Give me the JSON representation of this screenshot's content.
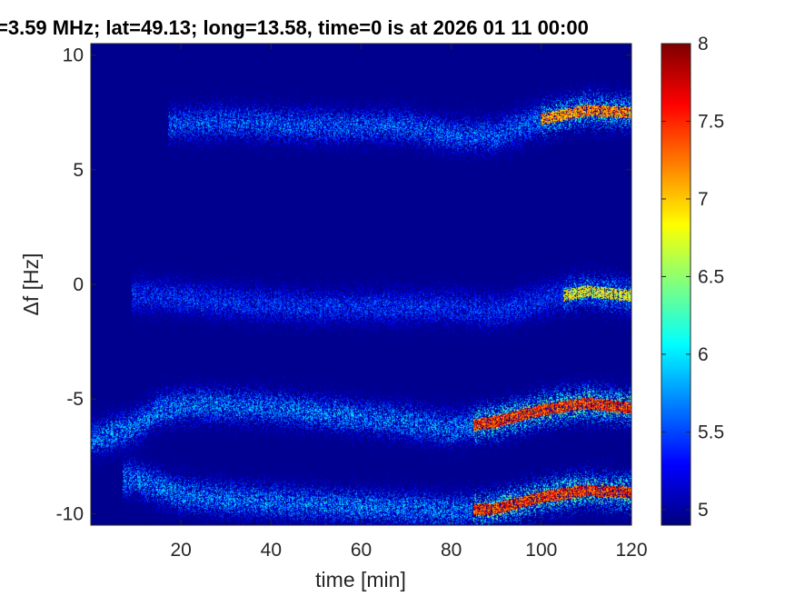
{
  "chart_data": {
    "type": "heatmap",
    "title": "=3.59 MHz;  lat=49.13; long=13.58, time=0 is at 2026 01 11 00:00",
    "xlabel": "time [min]",
    "ylabel": "Δf [Hz]",
    "xlim": [
      0,
      120
    ],
    "ylim": [
      -10.5,
      10.5
    ],
    "x_ticks": [
      20,
      40,
      60,
      80,
      100,
      120
    ],
    "x_tick_labels": [
      "20",
      "40",
      "60",
      "80",
      "100",
      "120"
    ],
    "y_ticks": [
      10,
      5,
      0,
      -5,
      -10
    ],
    "y_tick_labels": [
      "10",
      "5",
      "0",
      "-5",
      "-10"
    ],
    "colorbar": {
      "colormap": "jet",
      "range": [
        4.9,
        8
      ],
      "ticks": [
        5,
        5.5,
        6,
        6.5,
        7,
        7.5,
        8
      ],
      "tick_labels": [
        "5",
        "5.5",
        "6",
        "6.5",
        "7",
        "7.5",
        "8"
      ]
    },
    "background_color": "#00008f",
    "traces": [
      {
        "description": "upper band",
        "points": [
          [
            20,
            7.0
          ],
          [
            30,
            7.1
          ],
          [
            40,
            7.0
          ],
          [
            50,
            6.9
          ],
          [
            60,
            6.9
          ],
          [
            70,
            6.9
          ],
          [
            80,
            6.5
          ],
          [
            90,
            6.5
          ],
          [
            100,
            7.2
          ],
          [
            110,
            7.6
          ],
          [
            120,
            7.5
          ]
        ],
        "peak_intensity": 6.7,
        "strong_from": 100
      },
      {
        "description": "zero band",
        "points": [
          [
            12,
            -0.5
          ],
          [
            20,
            -0.6
          ],
          [
            30,
            -0.8
          ],
          [
            40,
            -0.9
          ],
          [
            50,
            -1.0
          ],
          [
            60,
            -1.0
          ],
          [
            70,
            -1.0
          ],
          [
            80,
            -1.0
          ],
          [
            90,
            -1.2
          ],
          [
            100,
            -0.7
          ],
          [
            110,
            -0.3
          ],
          [
            120,
            -0.5
          ]
        ],
        "peak_intensity": 6.3,
        "strong_from": 105
      },
      {
        "description": "lower-middle band",
        "points": [
          [
            0,
            -6.8
          ],
          [
            10,
            -6.2
          ],
          [
            15,
            -5.5
          ],
          [
            20,
            -5.3
          ],
          [
            30,
            -5.3
          ],
          [
            40,
            -5.4
          ],
          [
            50,
            -5.6
          ],
          [
            60,
            -5.8
          ],
          [
            70,
            -6.0
          ],
          [
            80,
            -6.3
          ],
          [
            90,
            -6.0
          ],
          [
            100,
            -5.5
          ],
          [
            110,
            -5.2
          ],
          [
            120,
            -5.4
          ]
        ],
        "peak_intensity": 7.0,
        "strong_from": 85
      },
      {
        "description": "bottom band",
        "points": [
          [
            10,
            -8.5
          ],
          [
            20,
            -9.2
          ],
          [
            30,
            -9.4
          ],
          [
            40,
            -9.5
          ],
          [
            50,
            -9.6
          ],
          [
            60,
            -9.7
          ],
          [
            70,
            -9.8
          ],
          [
            80,
            -9.9
          ],
          [
            90,
            -9.8
          ],
          [
            100,
            -9.3
          ],
          [
            110,
            -9.0
          ],
          [
            120,
            -9.1
          ]
        ],
        "peak_intensity": 7.0,
        "strong_from": 85
      }
    ]
  }
}
